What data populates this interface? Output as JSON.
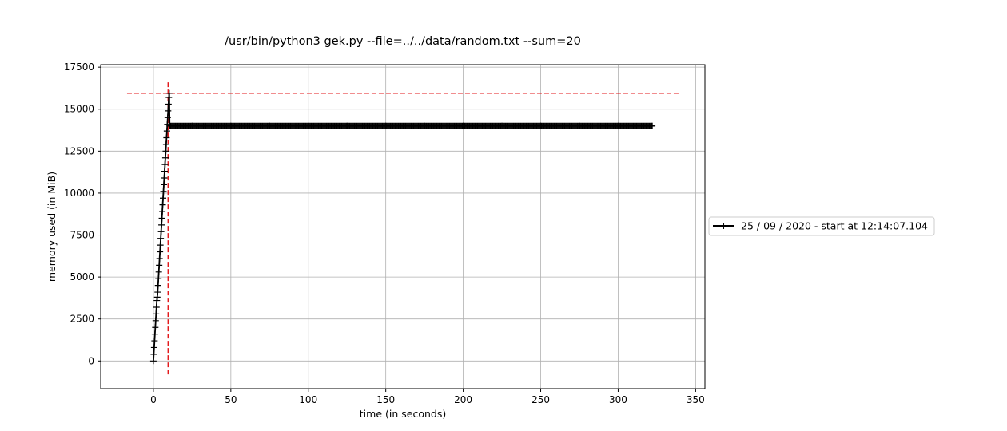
{
  "chart_data": {
    "type": "line",
    "title": "/usr/bin/python3 gek.py --file=../../data/random.txt --sum=20",
    "xlabel": "time (in seconds)",
    "ylabel": "memory used (in MiB)",
    "xlim": [
      -34,
      356
    ],
    "ylim": [
      -1650,
      17650
    ],
    "xticks": [
      0,
      50,
      100,
      150,
      200,
      250,
      300,
      350
    ],
    "xtick_labels": [
      "0",
      "50",
      "100",
      "150",
      "200",
      "250",
      "300",
      "350"
    ],
    "yticks": [
      0,
      2500,
      5000,
      7500,
      10000,
      12500,
      15000,
      17500
    ],
    "ytick_labels": [
      "0",
      "2500",
      "5000",
      "7500",
      "10000",
      "12500",
      "15000",
      "17500"
    ],
    "grid": true,
    "legend_position": "right, outside plot",
    "series": [
      {
        "name": "25 / 09 / 2020 - start at 12:14:07.104",
        "color": "#000000",
        "marker": "plus",
        "x": [
          0.0,
          0.25,
          0.5,
          0.75,
          1.0,
          1.25,
          1.5,
          1.75,
          2.0,
          2.25,
          2.5,
          2.75,
          3.0,
          3.25,
          3.5,
          3.75,
          4.0,
          4.25,
          4.5,
          4.75,
          5.0,
          5.25,
          5.5,
          5.75,
          6.0,
          6.25,
          6.5,
          6.75,
          7.0,
          7.25,
          7.5,
          7.75,
          8.0,
          8.25,
          8.5,
          8.75,
          9.0,
          9.25,
          9.5,
          9.75,
          10.0,
          10.25,
          10.5,
          25,
          50,
          75,
          100,
          125,
          150,
          175,
          200,
          225,
          250,
          275,
          300,
          322
        ],
        "y": [
          0,
          400,
          800,
          1200,
          1600,
          2000,
          2400,
          2800,
          3200,
          3600,
          3800,
          4100,
          4500,
          4900,
          5300,
          5700,
          6100,
          6500,
          6900,
          7300,
          7700,
          8100,
          8500,
          8900,
          9300,
          9700,
          10100,
          10500,
          10900,
          11300,
          11700,
          12100,
          12500,
          12900,
          13300,
          13700,
          14100,
          14500,
          14900,
          15300,
          15700,
          15950,
          14000,
          14000,
          14000,
          14000,
          14000,
          14000,
          14000,
          14000,
          14000,
          14000,
          14000,
          14000,
          14000,
          14000
        ]
      }
    ],
    "reference_lines": [
      {
        "orientation": "horizontal",
        "y": 15950,
        "x_from": -17,
        "x_to": 339,
        "color": "#e31a1c",
        "style": "dashed"
      },
      {
        "orientation": "vertical",
        "x": 9.5,
        "y_from": -800,
        "y_to": 16700,
        "color": "#e31a1c",
        "style": "dashed"
      }
    ]
  }
}
